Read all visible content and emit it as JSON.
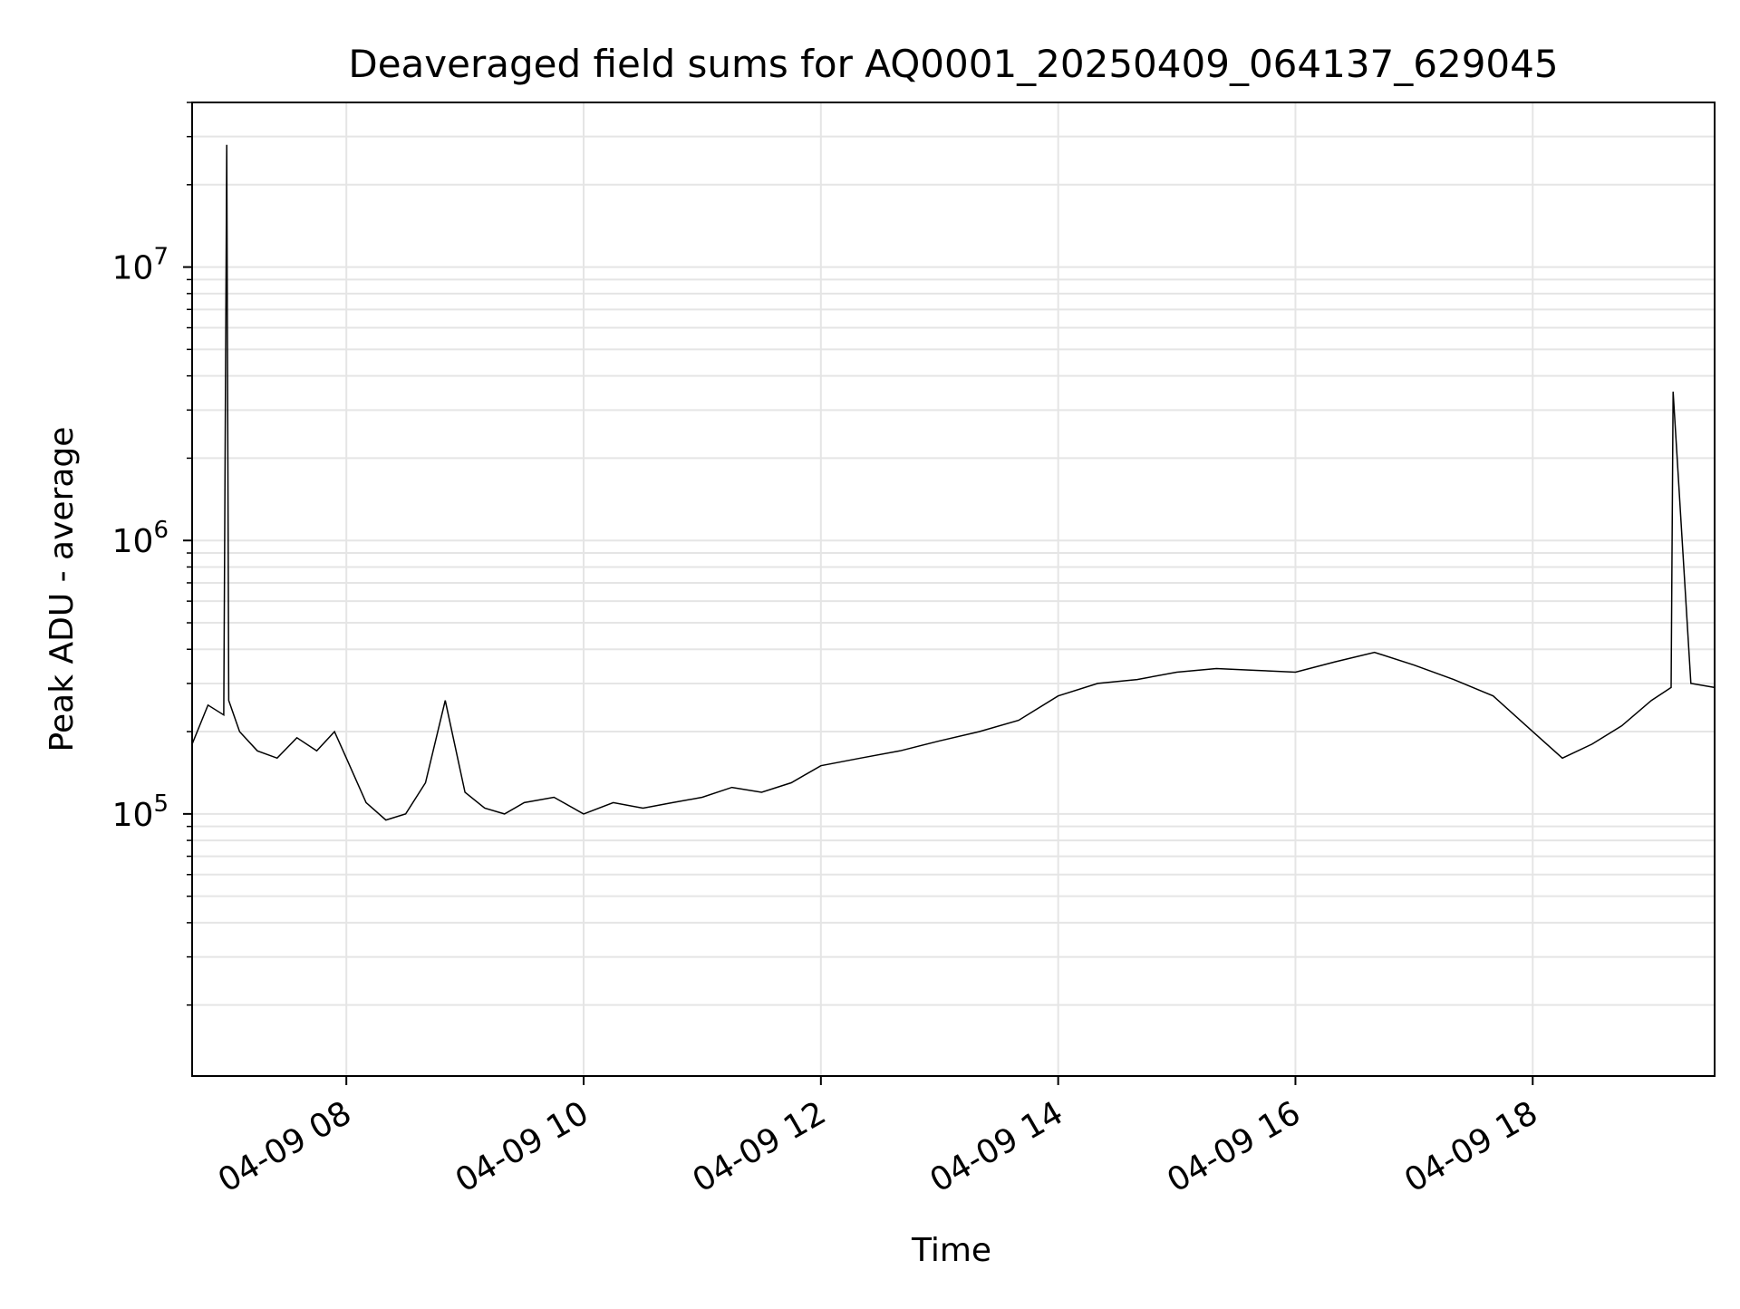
{
  "chart_data": {
    "type": "line",
    "title": "Deaveraged field sums for AQ0001_20250409_064137_629045",
    "xlabel": "Time",
    "ylabel": "Peak ADU - average",
    "x_axis": {
      "scale": "time",
      "range": [
        "2025-04-09T06:42:00",
        "2025-04-09T19:32:00"
      ],
      "ticks": [
        {
          "value": "2025-04-09T08:00:00",
          "label": "04-09 08"
        },
        {
          "value": "2025-04-09T10:00:00",
          "label": "04-09 10"
        },
        {
          "value": "2025-04-09T12:00:00",
          "label": "04-09 12"
        },
        {
          "value": "2025-04-09T14:00:00",
          "label": "04-09 14"
        },
        {
          "value": "2025-04-09T16:00:00",
          "label": "04-09 16"
        },
        {
          "value": "2025-04-09T18:00:00",
          "label": "04-09 18"
        }
      ],
      "tick_label_rotation": 30
    },
    "y_axis": {
      "scale": "log",
      "range": [
        11000,
        40000000
      ],
      "ticks": [
        {
          "value": 100000,
          "base": "10",
          "exp": "5"
        },
        {
          "value": 1000000,
          "base": "10",
          "exp": "6"
        },
        {
          "value": 10000000,
          "base": "10",
          "exp": "7"
        }
      ]
    },
    "grid": true,
    "line_color": "#000000",
    "grid_color": "#e5e5e5",
    "series": [
      {
        "x": [
          "2025-04-09T06:42:00",
          "2025-04-09T06:50:00",
          "2025-04-09T06:58:00",
          "2025-04-09T06:59:30",
          "2025-04-09T07:00:30",
          "2025-04-09T07:06:00",
          "2025-04-09T07:15:00",
          "2025-04-09T07:25:00",
          "2025-04-09T07:35:00",
          "2025-04-09T07:45:00",
          "2025-04-09T07:54:00",
          "2025-04-09T08:00:00",
          "2025-04-09T08:10:00",
          "2025-04-09T08:20:00",
          "2025-04-09T08:30:00",
          "2025-04-09T08:40:00",
          "2025-04-09T08:50:00",
          "2025-04-09T09:00:00",
          "2025-04-09T09:10:00",
          "2025-04-09T09:20:00",
          "2025-04-09T09:30:00",
          "2025-04-09T09:45:00",
          "2025-04-09T10:00:00",
          "2025-04-09T10:15:00",
          "2025-04-09T10:30:00",
          "2025-04-09T10:45:00",
          "2025-04-09T11:00:00",
          "2025-04-09T11:15:00",
          "2025-04-09T11:30:00",
          "2025-04-09T11:45:00",
          "2025-04-09T12:00:00",
          "2025-04-09T12:20:00",
          "2025-04-09T12:40:00",
          "2025-04-09T13:00:00",
          "2025-04-09T13:20:00",
          "2025-04-09T13:40:00",
          "2025-04-09T14:00:00",
          "2025-04-09T14:20:00",
          "2025-04-09T14:40:00",
          "2025-04-09T15:00:00",
          "2025-04-09T15:20:00",
          "2025-04-09T15:40:00",
          "2025-04-09T16:00:00",
          "2025-04-09T16:20:00",
          "2025-04-09T16:40:00",
          "2025-04-09T17:00:00",
          "2025-04-09T17:20:00",
          "2025-04-09T17:40:00",
          "2025-04-09T18:00:00",
          "2025-04-09T18:15:00",
          "2025-04-09T18:30:00",
          "2025-04-09T18:45:00",
          "2025-04-09T19:00:00",
          "2025-04-09T19:10:00",
          "2025-04-09T19:11:00",
          "2025-04-09T19:20:00",
          "2025-04-09T19:32:00"
        ],
        "y": [
          180000,
          250000,
          230000,
          28000000,
          260000,
          200000,
          170000,
          160000,
          190000,
          170000,
          200000,
          160000,
          110000,
          95000,
          100000,
          130000,
          260000,
          120000,
          105000,
          100000,
          110000,
          115000,
          100000,
          110000,
          105000,
          110000,
          115000,
          125000,
          120000,
          130000,
          150000,
          160000,
          170000,
          185000,
          200000,
          220000,
          270000,
          300000,
          310000,
          330000,
          340000,
          335000,
          330000,
          360000,
          390000,
          350000,
          310000,
          270000,
          200000,
          160000,
          180000,
          210000,
          260000,
          290000,
          3500000,
          300000,
          290000
        ]
      }
    ]
  }
}
